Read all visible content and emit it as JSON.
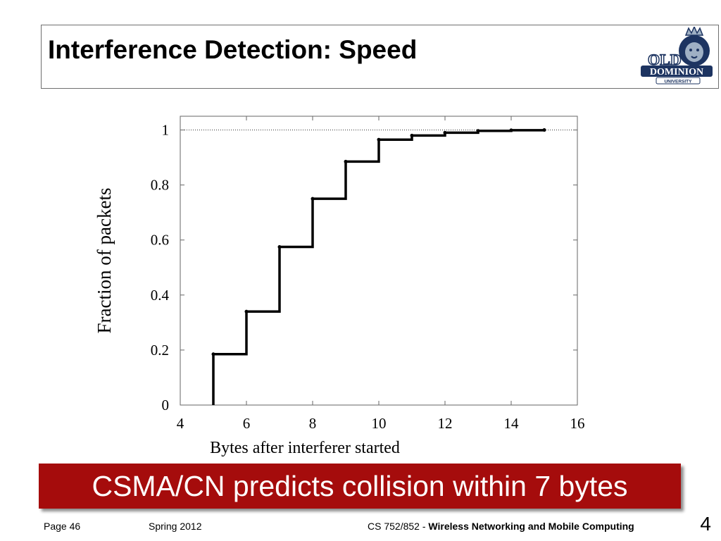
{
  "slide": {
    "title": "Interference Detection: Speed",
    "callout": "CSMA/CN predicts collision within 7 bytes",
    "footer": {
      "page_label": "Page 46",
      "term": "Spring 2012",
      "course_prefix": "CS 752/852 - ",
      "course_name": "Wireless Networking and Mobile Computing",
      "slide_number": "4"
    },
    "logo": {
      "line1": "OLD",
      "line2": "DOMINION",
      "line3": "UNIVERSITY"
    },
    "colors": {
      "callout_bg": "#a50c0c",
      "logo_navy": "#1d3461",
      "logo_silver": "#9fb0c4"
    }
  },
  "chart_data": {
    "type": "line",
    "step": true,
    "title": "",
    "xlabel": "Bytes after interferer started",
    "ylabel": "Fraction of packets",
    "xlim": [
      4,
      16
    ],
    "ylim": [
      0,
      1.05
    ],
    "xticks": [
      "4",
      "6",
      "8",
      "10",
      "12",
      "14",
      "16"
    ],
    "yticks": [
      "0",
      "0.2",
      "0.4",
      "0.6",
      "0.8",
      "1"
    ],
    "reference_line": {
      "y": 1,
      "style": "dotted"
    },
    "series": [
      {
        "x": [
          5,
          6,
          7,
          8,
          9,
          10,
          11,
          12,
          13,
          14,
          15
        ],
        "y": [
          0.185,
          0.34,
          0.575,
          0.75,
          0.885,
          0.965,
          0.98,
          0.99,
          0.997,
          0.999,
          1.0
        ]
      }
    ]
  }
}
